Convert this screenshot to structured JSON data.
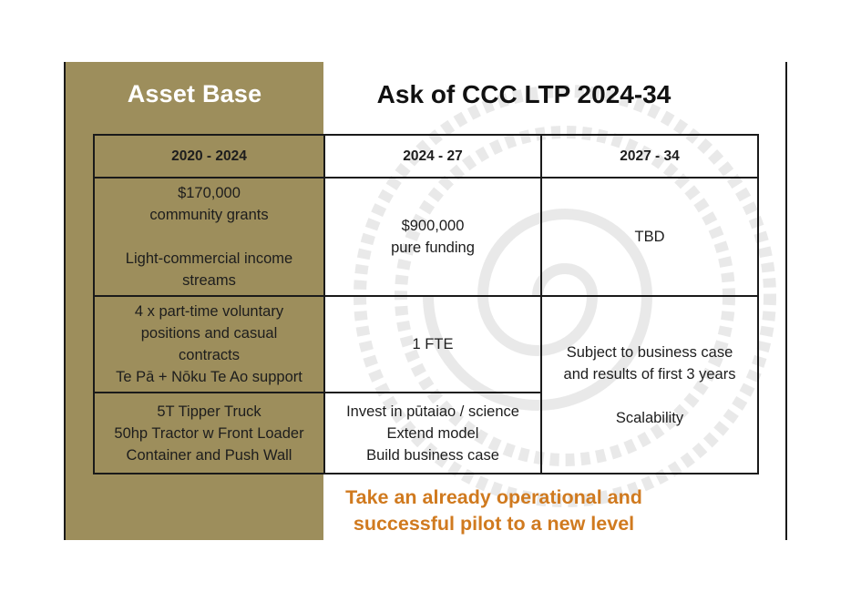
{
  "titles": {
    "asset_base": "Asset Base",
    "ask": "Ask of CCC LTP 2024-34"
  },
  "table": {
    "headers": [
      "2020 - 2024",
      "2024 - 27",
      "2027 - 34"
    ],
    "row1": {
      "asset": [
        "$170,000",
        "community grants",
        "Light-commercial income",
        "streams"
      ],
      "funding": [
        "$900,000",
        "pure funding"
      ],
      "future": "TBD"
    },
    "row2": {
      "asset": [
        "4 x part-time voluntary",
        "positions and casual",
        "contracts",
        "Te Pā + Nōku Te Ao support"
      ],
      "funding": "1 FTE"
    },
    "row3": {
      "asset": [
        "5T Tipper Truck",
        "50hp Tractor w Front Loader",
        "Container and Push Wall"
      ],
      "funding": [
        "Invest in pūtaiao / science",
        "Extend model",
        "Build business case"
      ]
    },
    "merged_future": [
      "Subject to business case",
      "and results of first 3 years",
      "Scalability"
    ]
  },
  "tagline": [
    "Take an already operational and",
    "successful pilot to a new level"
  ],
  "colors": {
    "olive": "#9d8e5c",
    "accent_orange": "#d07a1f",
    "rule": "#1a1a1a"
  }
}
